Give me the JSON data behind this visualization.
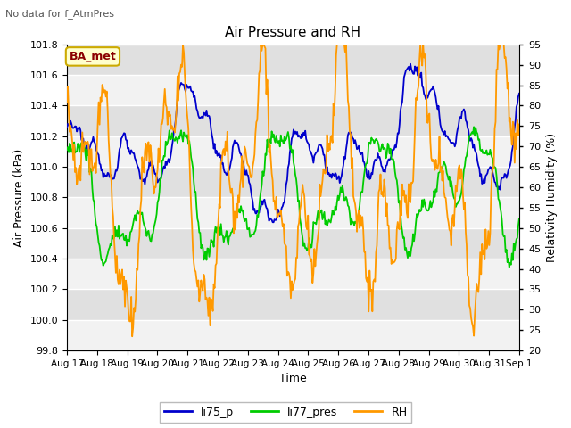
{
  "title": "Air Pressure and RH",
  "subtitle": "No data for f_AtmPres",
  "ylabel_left": "Air Pressure (kPa)",
  "ylabel_right": "Relativity Humidity (%)",
  "xlabel": "Time",
  "ylim_left": [
    99.8,
    101.8
  ],
  "ylim_right": [
    20,
    95
  ],
  "yticks_left": [
    99.8,
    100.0,
    100.2,
    100.4,
    100.6,
    100.8,
    101.0,
    101.2,
    101.4,
    101.6,
    101.8
  ],
  "yticks_right": [
    20,
    25,
    30,
    35,
    40,
    45,
    50,
    55,
    60,
    65,
    70,
    75,
    80,
    85,
    90,
    95
  ],
  "fig_bg": "#ffffff",
  "plot_bg": "#e8e8e8",
  "band_color_light": "#f2f2f2",
  "band_color_dark": "#e0e0e0",
  "ba_met_label": "BA_met",
  "legend_labels": [
    "li75_p",
    "li77_pres",
    "RH"
  ],
  "line_colors": [
    "#0000cc",
    "#00cc00",
    "#ff9900"
  ],
  "xticklabels": [
    "Aug 17",
    "Aug 18",
    "Aug 19",
    "Aug 20",
    "Aug 21",
    "Aug 22",
    "Aug 23",
    "Aug 24",
    "Aug 25",
    "Aug 26",
    "Aug 27",
    "Aug 28",
    "Aug 29",
    "Aug 30",
    "Aug 31",
    "Sep 1"
  ],
  "n_points": 500,
  "figsize": [
    6.4,
    4.8
  ],
  "dpi": 100
}
